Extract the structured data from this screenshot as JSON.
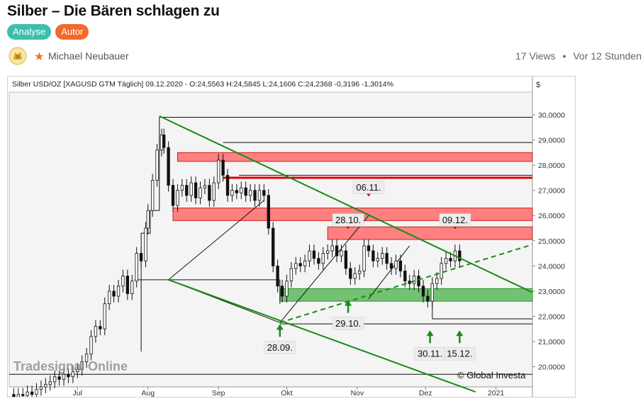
{
  "article": {
    "title": "Silber – Die Bären schlagen zu",
    "tags": [
      "Analyse",
      "Autor"
    ],
    "author": "Michael Neubauer",
    "views": "17 Views",
    "separator": "•",
    "time": "Vor 12 Stunden"
  },
  "colors": {
    "tag_analyse": "#3bbfad",
    "tag_autor": "#f26a2b",
    "resistance_zone": "#ff6b6b",
    "support_zone": "#5cb85c",
    "channel_line": "#1a8a1a",
    "resistance_line": "#e00000"
  },
  "icons": {
    "logo": "lion-logo-icon",
    "star": "star-icon"
  },
  "chart_data": {
    "type": "candlestick",
    "header": "Silber USD/OZ [XAGUSD GTM  Täglich] 09.12.2020 - O:24,5563 H:24,5845 L:24,1606 C:24,2368 -0,3196 -1,3014%",
    "currency_label": "$",
    "y_ticks": [
      "30,0000",
      "29,0000",
      "28,0000",
      "27,0000",
      "26,0000",
      "25,0000",
      "24,0000",
      "23,0000",
      "22,0000",
      "21,0000",
      "20,0000"
    ],
    "ylim": [
      19.2,
      30.9
    ],
    "x_ticks": [
      "Jul",
      "Aug",
      "Sep",
      "Okt",
      "Nov",
      "Dez",
      "2021"
    ],
    "x_tick_days": [
      0,
      31,
      62,
      92,
      123,
      153,
      184
    ],
    "xlim": [
      -30,
      200
    ],
    "zones": [
      {
        "type": "resistance",
        "y0": 28.15,
        "y1": 28.5,
        "x0": 44,
        "x1": 200
      },
      {
        "type": "resistance",
        "y0": 25.8,
        "y1": 26.3,
        "x0": 42,
        "x1": 200
      },
      {
        "type": "resistance",
        "y0": 25.05,
        "y1": 25.55,
        "x0": 110,
        "x1": 200
      },
      {
        "type": "support",
        "y0": 22.6,
        "y1": 23.1,
        "x0": 89,
        "x1": 200
      }
    ],
    "resistance_lines": [
      {
        "y": 27.5,
        "x0": 64,
        "x1": 200
      }
    ],
    "horizontal_lines": [
      {
        "y": 29.9,
        "x0": 36,
        "x1": 200
      },
      {
        "y": 28.9,
        "x0": 64,
        "x1": 200
      },
      {
        "y": 27.6,
        "x0": 71,
        "x1": 200
      },
      {
        "y": 21.9,
        "x0": 156,
        "x1": 200
      },
      {
        "y": 21.7,
        "x0": 89,
        "x1": 200
      },
      {
        "y": 19.7,
        "x0": -30,
        "x1": 200
      }
    ],
    "channel_lines": [
      {
        "x0": 36,
        "y0": 29.95,
        "x1": 200,
        "y1": 22.95,
        "style": "solid"
      },
      {
        "x0": 40,
        "y0": 23.45,
        "x1": 175,
        "y1": 19.0,
        "style": "solid"
      },
      {
        "x0": 89,
        "y0": 21.75,
        "x1": 200,
        "y1": 24.85,
        "style": "dashed"
      }
    ],
    "trend_lines": [
      {
        "x0": 40,
        "y0": 23.45,
        "x1": 82,
        "y1": 26.6
      },
      {
        "x0": 40,
        "y0": 23.45,
        "x1": 89,
        "y1": 21.75
      },
      {
        "x0": 89,
        "y0": 21.75,
        "x1": 128,
        "y1": 26.0
      },
      {
        "x0": 128,
        "y0": 22.7,
        "x1": 146,
        "y1": 24.8
      },
      {
        "x0": 25,
        "y0": 23.45,
        "x1": 89,
        "y1": 23.45
      }
    ],
    "step_lines": [
      {
        "points": [
          [
            28,
            20.6
          ],
          [
            28,
            25.3
          ],
          [
            32,
            25.3
          ],
          [
            32,
            26.2
          ],
          [
            36,
            26.2
          ],
          [
            36,
            29.9
          ]
        ]
      },
      {
        "points": [
          [
            89,
            23.45
          ],
          [
            89,
            22.5
          ]
        ]
      },
      {
        "points": [
          [
            156,
            22.6
          ],
          [
            156,
            21.9
          ]
        ]
      }
    ],
    "price_series": [
      [
        -30,
        18.9
      ],
      [
        -28,
        18.8
      ],
      [
        -26,
        18.9
      ],
      [
        -24,
        18.85
      ],
      [
        -22,
        19.0
      ],
      [
        -20,
        18.9
      ],
      [
        -18,
        19.1
      ],
      [
        -16,
        19.2
      ],
      [
        -14,
        19.3
      ],
      [
        -12,
        19.4
      ],
      [
        -10,
        19.6
      ],
      [
        -8,
        19.5
      ],
      [
        -6,
        19.7
      ],
      [
        -4,
        19.6
      ],
      [
        -2,
        19.8
      ],
      [
        0,
        19.9
      ],
      [
        2,
        20.2
      ],
      [
        4,
        20.5
      ],
      [
        6,
        21.2
      ],
      [
        8,
        21.6
      ],
      [
        10,
        21.5
      ],
      [
        12,
        22.5
      ],
      [
        14,
        23.0
      ],
      [
        16,
        22.8
      ],
      [
        18,
        23.2
      ],
      [
        20,
        23.6
      ],
      [
        22,
        22.9
      ],
      [
        24,
        23.4
      ],
      [
        26,
        24.5
      ],
      [
        28,
        24.2
      ],
      [
        30,
        25.5
      ],
      [
        31,
        26.2
      ],
      [
        33,
        27.4
      ],
      [
        35,
        28.6
      ],
      [
        37,
        29.2
      ],
      [
        38,
        28.7
      ],
      [
        40,
        27.2
      ],
      [
        42,
        26.4
      ],
      [
        44,
        27.0
      ],
      [
        46,
        27.2
      ],
      [
        48,
        26.8
      ],
      [
        50,
        27.3
      ],
      [
        52,
        26.7
      ],
      [
        54,
        27.1
      ],
      [
        56,
        27.2
      ],
      [
        58,
        26.6
      ],
      [
        60,
        27.3
      ],
      [
        62,
        28.2
      ],
      [
        64,
        27.6
      ],
      [
        66,
        26.8
      ],
      [
        68,
        27.0
      ],
      [
        70,
        26.9
      ],
      [
        72,
        27.1
      ],
      [
        74,
        26.8
      ],
      [
        76,
        27.0
      ],
      [
        78,
        26.6
      ],
      [
        80,
        27.0
      ],
      [
        82,
        26.8
      ],
      [
        84,
        25.5
      ],
      [
        86,
        24.0
      ],
      [
        88,
        23.2
      ],
      [
        90,
        22.8
      ],
      [
        92,
        23.4
      ],
      [
        94,
        23.9
      ],
      [
        96,
        24.1
      ],
      [
        98,
        24.0
      ],
      [
        100,
        24.2
      ],
      [
        102,
        24.6
      ],
      [
        104,
        24.3
      ],
      [
        106,
        24.1
      ],
      [
        108,
        24.5
      ],
      [
        110,
        24.6
      ],
      [
        112,
        24.8
      ],
      [
        114,
        24.4
      ],
      [
        116,
        24.6
      ],
      [
        118,
        23.9
      ],
      [
        120,
        23.5
      ],
      [
        122,
        23.7
      ],
      [
        124,
        23.8
      ],
      [
        126,
        24.8
      ],
      [
        128,
        24.6
      ],
      [
        130,
        24.2
      ],
      [
        132,
        24.3
      ],
      [
        134,
        24.5
      ],
      [
        136,
        24.1
      ],
      [
        138,
        23.9
      ],
      [
        140,
        24.2
      ],
      [
        142,
        23.8
      ],
      [
        144,
        23.4
      ],
      [
        146,
        23.3
      ],
      [
        148,
        23.6
      ],
      [
        150,
        23.2
      ],
      [
        152,
        22.8
      ],
      [
        154,
        22.6
      ],
      [
        156,
        23.3
      ],
      [
        158,
        23.5
      ],
      [
        160,
        24.1
      ],
      [
        162,
        24.3
      ],
      [
        164,
        24.2
      ],
      [
        166,
        24.6
      ],
      [
        168,
        24.2
      ]
    ],
    "price_point_step_days": 2,
    "annotations": [
      {
        "label": "06.11.",
        "x": 128,
        "y": 26.7,
        "pos": "above"
      },
      {
        "label": "28.10.",
        "x": 119,
        "y": 25.4,
        "pos": "above"
      },
      {
        "label": "09.12.",
        "x": 166,
        "y": 25.4,
        "pos": "above"
      },
      {
        "label": "28.09.",
        "x": 89,
        "y": 21.75,
        "pos": "below",
        "arrow": true
      },
      {
        "label": "29.10.",
        "x": 119,
        "y": 22.7,
        "pos": "below",
        "arrow": true
      },
      {
        "label": "30.11.",
        "x": 155,
        "y": 21.5,
        "pos": "below",
        "arrow": true
      },
      {
        "label": "15.12.",
        "x": 168,
        "y": 21.5,
        "pos": "below",
        "arrow": true
      }
    ],
    "watermark": "Tradesignal Online",
    "copyright": "© Global Investa",
    "grid": false
  }
}
